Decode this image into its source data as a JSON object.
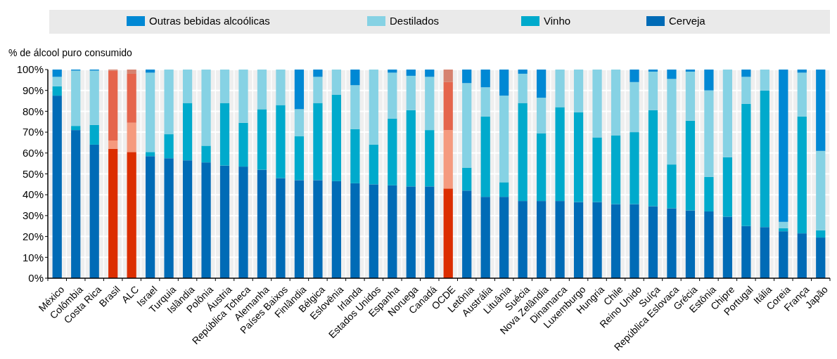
{
  "chart_data": {
    "type": "bar",
    "stacked": true,
    "ylabel": "% de álcool puro consumido",
    "legend": "top",
    "grid": true,
    "categories": [
      "México",
      "Colômbia",
      "Costa Rica",
      "Brasil",
      "ALC",
      "Israel",
      "Turquia",
      "Islândia",
      "Polônia",
      "Áustria",
      "República Tcheca",
      "Alemanha",
      "Países Baixos",
      "Finlândia",
      "Bélgica",
      "Eslovênia",
      "Irlanda",
      "Estados Unidos",
      "Espanha",
      "Noruega",
      "Canadá",
      "OCDE",
      "Letônia",
      "Austrália",
      "Lituânia",
      "Suécia",
      "Nova Zelândia",
      "Dinamarca",
      "Luxemburgo",
      "Hungria",
      "Chile",
      "Reino Unido",
      "Suíça",
      "República Eslovaca",
      "Grécia",
      "Estônia",
      "Chipre",
      "Portugal",
      "Itália",
      "Coreia",
      "França",
      "Japão"
    ],
    "ylim": [
      0,
      100
    ],
    "yticks": [
      {
        "value": 0,
        "label": "0%"
      },
      {
        "value": 10,
        "label": "10%"
      },
      {
        "value": 20,
        "label": "20%"
      },
      {
        "value": 30,
        "label": "30%"
      },
      {
        "value": 40,
        "label": "40%"
      },
      {
        "value": 50,
        "label": "50%"
      },
      {
        "value": 60,
        "label": "60%"
      },
      {
        "value": 70,
        "label": "70%"
      },
      {
        "value": 80,
        "label": "80%"
      },
      {
        "value": 90,
        "label": "90%"
      },
      {
        "value": 100,
        "label": "100%"
      }
    ],
    "series": [
      {
        "name": "Cerveja",
        "color": "#006bb6",
        "colors": [
          "#006bb6",
          "#006bb6",
          "#006bb6",
          "#dc2e00",
          "#dc2e00",
          "#006bb6",
          "#006bb6",
          "#006bb6",
          "#006bb6",
          "#006bb6",
          "#006bb6",
          "#006bb6",
          "#006bb6",
          "#006bb6",
          "#006bb6",
          "#006bb6",
          "#006bb6",
          "#006bb6",
          "#006bb6",
          "#006bb6",
          "#006bb6",
          "#dc2e00",
          "#006bb6",
          "#006bb6",
          "#006bb6",
          "#006bb6",
          "#006bb6",
          "#006bb6",
          "#006bb6",
          "#006bb6",
          "#006bb6",
          "#006bb6",
          "#006bb6",
          "#006bb6",
          "#006bb6",
          "#006bb6",
          "#006bb6",
          "#006bb6",
          "#006bb6",
          "#006bb6",
          "#006bb6",
          "#006bb6"
        ],
        "values": [
          87.5,
          71,
          64,
          62,
          60.5,
          58.5,
          57.5,
          56.5,
          55.5,
          54,
          53.5,
          52,
          48,
          47,
          47,
          46.5,
          45.5,
          45,
          44.5,
          44,
          44,
          43,
          42,
          39,
          39,
          37,
          37,
          37,
          36.5,
          36.5,
          35.5,
          35.5,
          34.5,
          33.5,
          32.5,
          32,
          29.5,
          25,
          24.5,
          22.5,
          21.5,
          19.5
        ]
      },
      {
        "name": "Vinho",
        "color": "#00aacc",
        "colors": [
          "#00aacc",
          "#00aacc",
          "#00aacc",
          "#f59a7e",
          "#f59a7e",
          "#00aacc",
          "#00aacc",
          "#00aacc",
          "#00aacc",
          "#00aacc",
          "#00aacc",
          "#00aacc",
          "#00aacc",
          "#00aacc",
          "#00aacc",
          "#00aacc",
          "#00aacc",
          "#00aacc",
          "#00aacc",
          "#00aacc",
          "#00aacc",
          "#f59a7e",
          "#00aacc",
          "#00aacc",
          "#00aacc",
          "#00aacc",
          "#00aacc",
          "#00aacc",
          "#00aacc",
          "#00aacc",
          "#00aacc",
          "#00aacc",
          "#00aacc",
          "#00aacc",
          "#00aacc",
          "#00aacc",
          "#00aacc",
          "#00aacc",
          "#00aacc",
          "#00aacc",
          "#00aacc",
          "#00aacc"
        ],
        "values": [
          4.5,
          2,
          9.5,
          4,
          14,
          2,
          11.5,
          27.5,
          8,
          30,
          21,
          29,
          35,
          21,
          37,
          41.5,
          26,
          19,
          32,
          36.5,
          27,
          28,
          11,
          38.5,
          7,
          47,
          32.5,
          45,
          43,
          31,
          33,
          34.5,
          46,
          21,
          43,
          16.5,
          28.5,
          58.5,
          65.5,
          1.5,
          56,
          3.5
        ]
      },
      {
        "name": "Destilados",
        "color": "#86d2e4",
        "colors": [
          "#86d2e4",
          "#86d2e4",
          "#86d2e4",
          "#e5654c",
          "#e5654c",
          "#86d2e4",
          "#86d2e4",
          "#86d2e4",
          "#86d2e4",
          "#86d2e4",
          "#86d2e4",
          "#86d2e4",
          "#86d2e4",
          "#86d2e4",
          "#86d2e4",
          "#86d2e4",
          "#86d2e4",
          "#86d2e4",
          "#86d2e4",
          "#86d2e4",
          "#86d2e4",
          "#e5654c",
          "#86d2e4",
          "#86d2e4",
          "#86d2e4",
          "#86d2e4",
          "#86d2e4",
          "#86d2e4",
          "#86d2e4",
          "#86d2e4",
          "#86d2e4",
          "#86d2e4",
          "#86d2e4",
          "#86d2e4",
          "#86d2e4",
          "#86d2e4",
          "#86d2e4",
          "#86d2e4",
          "#86d2e4",
          "#86d2e4",
          "#86d2e4",
          "#86d2e4"
        ],
        "values": [
          4.5,
          26.5,
          26,
          33.5,
          23.5,
          38,
          31,
          16,
          36.5,
          16,
          25.5,
          19,
          17,
          13,
          12.5,
          12,
          21,
          36,
          22,
          16.5,
          25.5,
          23,
          40.5,
          14,
          41.5,
          14,
          17,
          18,
          20.5,
          32.5,
          31.5,
          24,
          18.5,
          41,
          23.5,
          41.5,
          42,
          13,
          10,
          3,
          21,
          38
        ]
      },
      {
        "name": "Outras bebidas alcoólicas",
        "color": "#0088d4",
        "colors": [
          "#0088d4",
          "#0088d4",
          "#0088d4",
          "#d6826f",
          "#d6826f",
          "#0088d4",
          "#0088d4",
          "#0088d4",
          "#0088d4",
          "#0088d4",
          "#0088d4",
          "#0088d4",
          "#0088d4",
          "#0088d4",
          "#0088d4",
          "#0088d4",
          "#0088d4",
          "#0088d4",
          "#0088d4",
          "#0088d4",
          "#0088d4",
          "#d6826f",
          "#0088d4",
          "#0088d4",
          "#0088d4",
          "#0088d4",
          "#0088d4",
          "#0088d4",
          "#0088d4",
          "#0088d4",
          "#0088d4",
          "#0088d4",
          "#0088d4",
          "#0088d4",
          "#0088d4",
          "#0088d4",
          "#0088d4",
          "#0088d4",
          "#0088d4",
          "#0088d4",
          "#0088d4",
          "#0088d4"
        ],
        "values": [
          3.5,
          0.5,
          0.5,
          0.5,
          2,
          1.5,
          0,
          0,
          0,
          0,
          0,
          0,
          0,
          19,
          3.5,
          0,
          7.5,
          0,
          1.5,
          3,
          3.5,
          6,
          6.5,
          8.5,
          12.5,
          2,
          13.5,
          0,
          0,
          0,
          0,
          6,
          1,
          4.5,
          1,
          10,
          0,
          3.5,
          0,
          73,
          1.5,
          39
        ]
      }
    ]
  }
}
